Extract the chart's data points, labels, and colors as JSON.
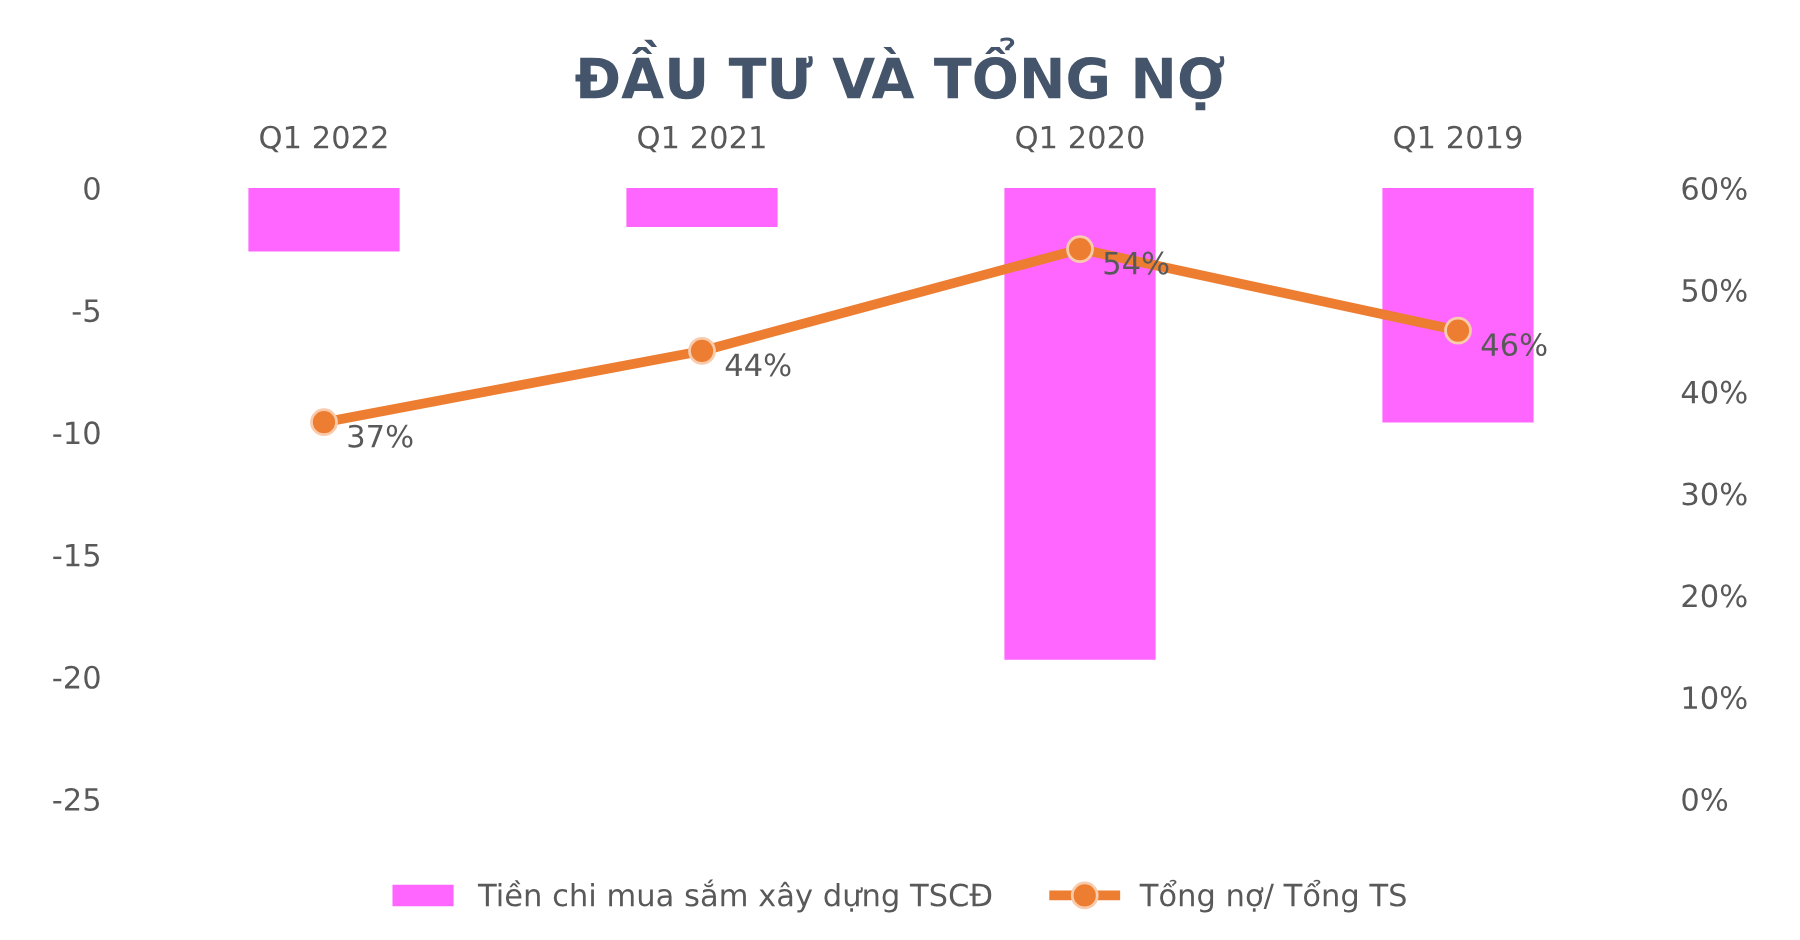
{
  "chart_data": {
    "type": "bar",
    "title": "ĐẦU TƯ VÀ TỔNG NỢ",
    "categories": [
      "Q1 2022",
      "Q1 2021",
      "Q1 2020",
      "Q1 2019"
    ],
    "series": [
      {
        "name": "Tiền chi mua sắm xây dựng TSCĐ",
        "color": "#ff66ff",
        "values": [
          -2.6,
          -1.6,
          -19.3,
          -9.6
        ]
      },
      {
        "name": "Tổng nợ/ Tổng TS",
        "type": "line",
        "axis": "y2",
        "color": "#ed7d31",
        "values": [
          37,
          44,
          54,
          46
        ],
        "value_labels": [
          "37%",
          "44%",
          "54%",
          "46%"
        ],
        "marker": "circle"
      }
    ],
    "ylim": [
      -25,
      0
    ],
    "yticks": [
      -25,
      -20,
      -15,
      -10,
      -5,
      0
    ],
    "y2lim": [
      0,
      60
    ],
    "y2ticks": [
      {
        "value": 0,
        "label": "0%"
      },
      {
        "value": 10,
        "label": "10%"
      },
      {
        "value": 20,
        "label": "20%"
      },
      {
        "value": 30,
        "label": "30%"
      },
      {
        "value": 40,
        "label": "40%"
      },
      {
        "value": 50,
        "label": "50%"
      },
      {
        "value": 60,
        "label": "60%"
      }
    ],
    "grid": false,
    "legend": "bottom"
  }
}
